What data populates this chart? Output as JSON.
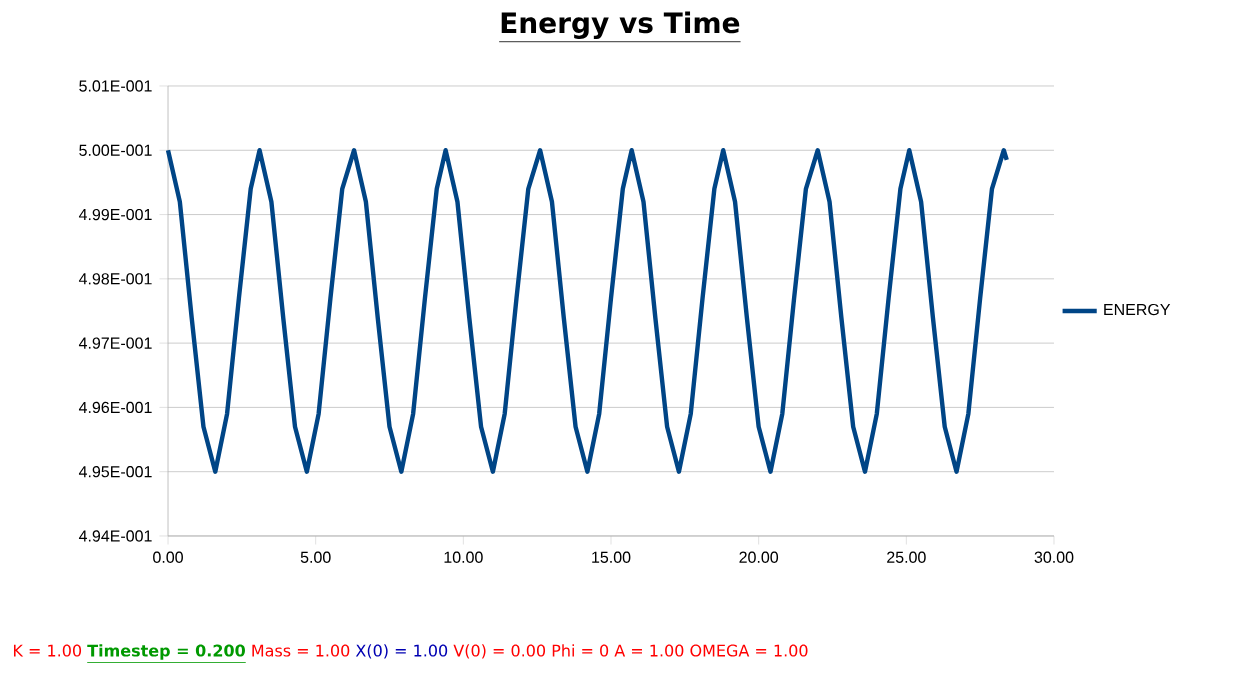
{
  "chart_data": {
    "type": "line",
    "title": "Energy vs Time",
    "x": [
      0,
      0.4,
      0.8,
      1.2,
      1.6,
      2.0,
      2.4,
      2.8,
      3.1,
      3.5,
      3.9,
      4.3,
      4.7,
      5.1,
      5.5,
      5.9,
      6.3,
      6.7,
      7.1,
      7.5,
      7.9,
      8.3,
      8.7,
      9.1,
      9.4,
      9.8,
      10.2,
      10.6,
      11.0,
      11.4,
      11.8,
      12.2,
      12.6,
      13.0,
      13.4,
      13.8,
      14.2,
      14.6,
      15.0,
      15.4,
      15.7,
      16.1,
      16.5,
      16.9,
      17.3,
      17.7,
      18.1,
      18.5,
      18.8,
      19.2,
      19.6,
      20.0,
      20.4,
      20.8,
      21.2,
      21.6,
      22.0,
      22.4,
      22.8,
      23.2,
      23.6,
      24.0,
      24.4,
      24.8,
      25.1,
      25.5,
      25.9,
      26.3,
      26.7,
      27.1,
      27.5,
      27.9,
      28.3,
      28.4
    ],
    "series": [
      {
        "name": "ENERGY",
        "color": "#004586",
        "values": [
          0.5,
          0.4992,
          0.4974,
          0.4957,
          0.495,
          0.4959,
          0.4977,
          0.4994,
          0.5,
          0.4992,
          0.4974,
          0.4957,
          0.495,
          0.4959,
          0.4977,
          0.4994,
          0.5,
          0.4992,
          0.4974,
          0.4957,
          0.495,
          0.4959,
          0.4977,
          0.4994,
          0.5,
          0.4992,
          0.4974,
          0.4957,
          0.495,
          0.4959,
          0.4977,
          0.4994,
          0.5,
          0.4992,
          0.4974,
          0.4957,
          0.495,
          0.4959,
          0.4977,
          0.4994,
          0.5,
          0.4992,
          0.4974,
          0.4957,
          0.495,
          0.4959,
          0.4977,
          0.4994,
          0.5,
          0.4992,
          0.4974,
          0.4957,
          0.495,
          0.4959,
          0.4977,
          0.4994,
          0.5,
          0.4992,
          0.4974,
          0.4957,
          0.495,
          0.4959,
          0.4977,
          0.4994,
          0.5,
          0.4992,
          0.4974,
          0.4957,
          0.495,
          0.4959,
          0.4977,
          0.4994,
          0.5,
          0.49985
        ]
      }
    ],
    "xlim": [
      0,
      30
    ],
    "xticks": [
      {
        "value": 0,
        "label": "0.00"
      },
      {
        "value": 5,
        "label": "5.00"
      },
      {
        "value": 10,
        "label": "10.00"
      },
      {
        "value": 15,
        "label": "15.00"
      },
      {
        "value": 20,
        "label": "20.00"
      },
      {
        "value": 25,
        "label": "25.00"
      },
      {
        "value": 30,
        "label": "30.00"
      }
    ],
    "ylim": [
      0.494,
      0.501
    ],
    "yticks": [
      {
        "value": 0.494,
        "label": "4.94E-001"
      },
      {
        "value": 0.495,
        "label": "4.95E-001"
      },
      {
        "value": 0.496,
        "label": "4.96E-001"
      },
      {
        "value": 0.497,
        "label": "4.97E-001"
      },
      {
        "value": 0.498,
        "label": "4.98E-001"
      },
      {
        "value": 0.499,
        "label": "4.99E-001"
      },
      {
        "value": 0.5,
        "label": "5.00E-001"
      },
      {
        "value": 0.501,
        "label": "5.01E-001"
      }
    ],
    "grid": "y",
    "legend": "right",
    "marker": "none",
    "line_style": "solid",
    "annotations": [
      "K = 1.00",
      "Timestep = 0.200",
      "Mass = 1.00",
      "X(0) = 1.00",
      "V(0) = 0.00",
      "Phi = 0",
      "A = 1.00",
      "OMEGA = 1.00"
    ]
  }
}
